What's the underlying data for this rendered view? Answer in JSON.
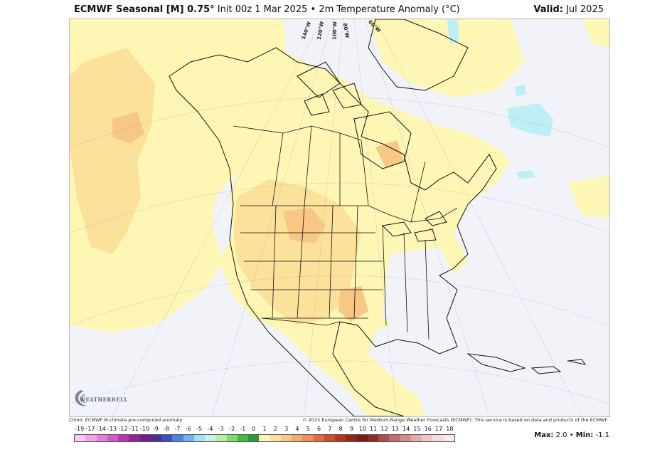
{
  "header": {
    "model": "ECMWF Seasonal [M] 0.75°",
    "init": "Init 00z 1 Mar 2025",
    "bullet": "•",
    "field": "2m Temperature Anomaly (°C)",
    "valid_label": "Valid:",
    "valid_value": "Jul 2025"
  },
  "map": {
    "lon_labels": [
      "140°W",
      "120°W",
      "100°W",
      "80°W",
      "60°W"
    ],
    "colors": {
      "background": "#f1f3f9",
      "anom_0_1": "#fdf6b4",
      "anom_1_2": "#fbe19a",
      "anom_2_3": "#f8c783",
      "anom_neg": "#bdeff7",
      "coast": "#111111"
    }
  },
  "footer": {
    "climo": "Climo: ECMWF M-climate pre-computed anomaly",
    "credit": "© 2025 European Centre for Medium-Range Weather Forecasts (ECMWF). This service is based on data and products of the ECMWF."
  },
  "logo": {
    "text": "WEATHERBELL"
  },
  "colorbar": {
    "ticks": [
      "-19",
      "-17",
      "-14",
      "-13",
      "-12",
      "-11",
      "-10",
      "-9",
      "-8",
      "-7",
      "-6",
      "-5",
      "-4",
      "-3",
      "-2",
      "-1",
      "0",
      "1",
      "2",
      "3",
      "4",
      "5",
      "6",
      "7",
      "8",
      "9",
      "10",
      "11",
      "12",
      "13",
      "14",
      "15",
      "16",
      "17",
      "18"
    ],
    "colors": [
      "#f9c9f3",
      "#f2a3e8",
      "#e77dd9",
      "#d657c6",
      "#bc35ad",
      "#9a1f97",
      "#6f1f8f",
      "#4b2c9a",
      "#3b4fc4",
      "#4f7fe0",
      "#6fb0ef",
      "#9ee0f6",
      "#c9f3ea",
      "#b8eea4",
      "#7edc6b",
      "#3fbf3a",
      "#2b9a3a",
      "#fdf6b4",
      "#fbe19a",
      "#f8c783",
      "#f5ab6c",
      "#ef8d52",
      "#e46c3a",
      "#d24c2a",
      "#b7341f",
      "#952516",
      "#7b1a10",
      "#8d2a2a",
      "#ad4949",
      "#c96a6a",
      "#d98b8b",
      "#e5a9a9",
      "#efc5c5",
      "#f5dada",
      "#fbeaea"
    ]
  },
  "stats": {
    "max_label": "Max:",
    "max_value": "2.0",
    "sep": "•",
    "min_label": "Min:",
    "min_value": "-1.1"
  }
}
